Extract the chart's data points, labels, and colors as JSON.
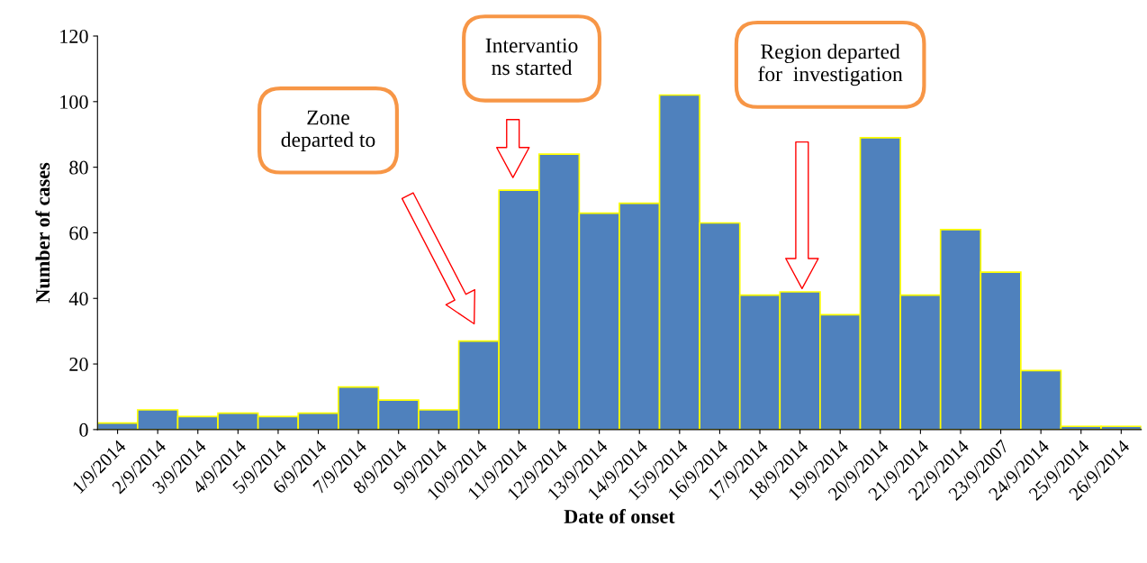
{
  "chart_data": {
    "type": "bar",
    "xlabel": "Date of onset",
    "ylabel": "Number of cases",
    "categories": [
      "1/9/2014",
      "2/9/2014",
      "3/9/2014",
      "4/9/2014",
      "5/9/2014",
      "6/9/2014",
      "7/9/2014",
      "8/9/2014",
      "9/9/2014",
      "10/9/2014",
      "11/9/2014",
      "12/9/2014",
      "13/9/2014",
      "14/9/2014",
      "15/9/2014",
      "16/9/2014",
      "17/9/2014",
      "18/9/2014",
      "19/9/2014",
      "20/9/2014",
      "21/9/2014",
      "22/9/2014",
      "23/9/2007",
      "24/9/2014",
      "25/9/2014",
      "26/9/2014"
    ],
    "values": [
      2,
      6,
      4,
      5,
      4,
      5,
      13,
      9,
      6,
      27,
      73,
      84,
      66,
      69,
      102,
      63,
      41,
      42,
      35,
      89,
      41,
      61,
      48,
      18,
      1,
      1
    ],
    "color": "#4f81bd",
    "ylim": [
      0,
      120
    ],
    "yticks": [
      0,
      20,
      40,
      60,
      80,
      100,
      120
    ],
    "grid": false,
    "legend": false,
    "annotations": [
      "Zone\ndeparted to",
      "Intervantio\nns started",
      "Region departed\nfor  investigation"
    ]
  }
}
